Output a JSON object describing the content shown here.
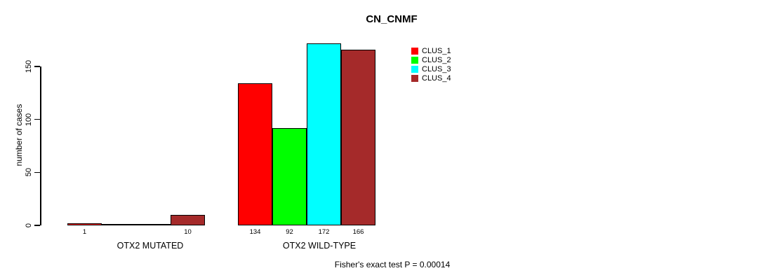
{
  "chart": {
    "title": "CN_CNMF",
    "y_axis_label": "number of cases",
    "footer": "Fisher's exact test P = 0.00014"
  },
  "chart_data": {
    "type": "bar",
    "title": "CN_CNMF",
    "xlabel": "",
    "ylabel": "number of cases",
    "categories": [
      "OTX2 MUTATED",
      "OTX2 WILD-TYPE"
    ],
    "series": [
      {
        "name": "CLUS_1",
        "color": "#ff0000",
        "values": [
          1,
          134
        ]
      },
      {
        "name": "CLUS_2",
        "color": "#00ff00",
        "values": [
          0,
          92
        ]
      },
      {
        "name": "CLUS_3",
        "color": "#00ffff",
        "values": [
          0,
          172
        ]
      },
      {
        "name": "CLUS_4",
        "color": "#a52a2a",
        "values": [
          10,
          166
        ]
      }
    ],
    "bar_value_labels": [
      [
        "1",
        "",
        "",
        "10"
      ],
      [
        "134",
        "92",
        "172",
        "166"
      ]
    ],
    "yticks": [
      0,
      50,
      100,
      150
    ],
    "ylim": [
      0,
      175
    ],
    "grid": false,
    "legend_position": "topright",
    "legend_entries": [
      "CLUS_1",
      "CLUS_2",
      "CLUS_3",
      "CLUS_4"
    ],
    "annotation": "Fisher's exact test P = 0.00014"
  }
}
